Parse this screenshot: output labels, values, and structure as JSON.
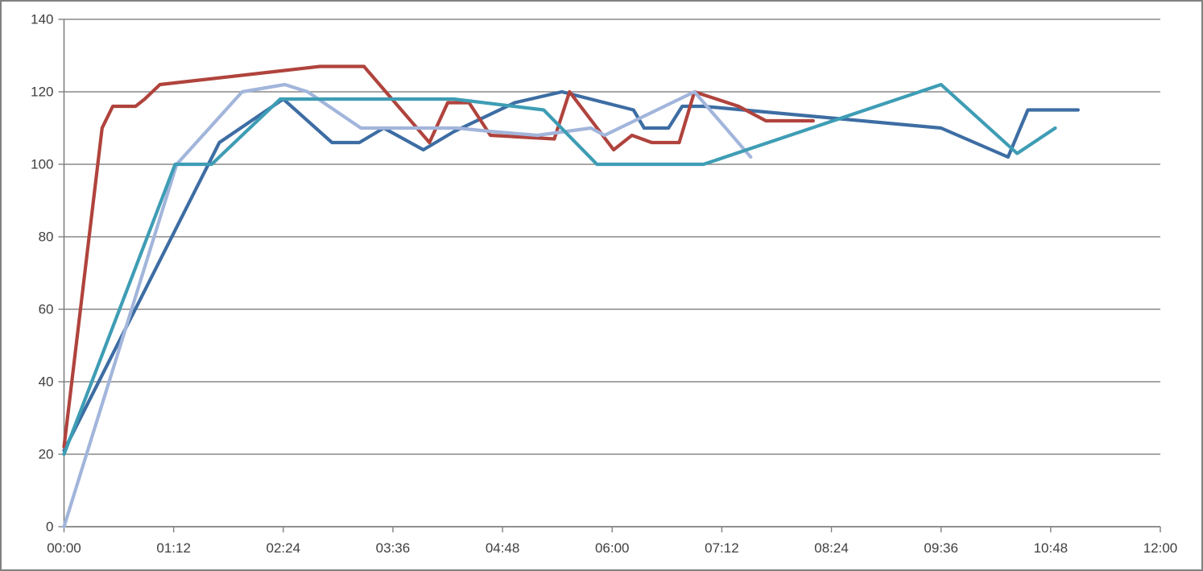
{
  "chart_data": {
    "type": "line",
    "title": "",
    "legend": "none",
    "grid": "horizontal",
    "background": "#FFFFFF",
    "frame_border_color": "#808080",
    "axis_color": "#808080",
    "gridline_color": "#888888",
    "label_color": "#3F3F3F",
    "x_axis": {
      "kind": "time",
      "tick_labels": [
        "00:00",
        "01:12",
        "02:24",
        "03:36",
        "04:48",
        "06:00",
        "07:12",
        "08:24",
        "09:36",
        "10:48",
        "12:00"
      ],
      "tick_minutes": [
        0,
        72,
        144,
        216,
        288,
        360,
        432,
        504,
        576,
        648,
        720
      ],
      "range_minutes": [
        0,
        720
      ]
    },
    "y_axis": {
      "tick_labels": [
        "0",
        "20",
        "40",
        "60",
        "80",
        "100",
        "120",
        "140"
      ],
      "ticks": [
        0,
        20,
        40,
        60,
        80,
        100,
        120,
        140
      ],
      "range": [
        0,
        140
      ]
    },
    "series": [
      {
        "name": "dark-blue",
        "color": "#3D6DA3",
        "points_time_value": [
          [
            "00:00",
            21
          ],
          [
            "01:42",
            106
          ],
          [
            "02:24",
            118
          ],
          [
            "02:56",
            106
          ],
          [
            "03:14",
            106
          ],
          [
            "03:30",
            110
          ],
          [
            "03:56",
            104
          ],
          [
            "04:16",
            109
          ],
          [
            "04:56",
            117
          ],
          [
            "05:27",
            120
          ],
          [
            "06:14",
            115
          ],
          [
            "06:21",
            110
          ],
          [
            "06:37",
            110
          ],
          [
            "06:46",
            116
          ],
          [
            "07:00",
            116
          ],
          [
            "09:36",
            110
          ],
          [
            "10:20",
            102
          ],
          [
            "10:33",
            115
          ],
          [
            "11:06",
            115
          ]
        ]
      },
      {
        "name": "dark-red",
        "color": "#B0433D",
        "points_time_value": [
          [
            "00:00",
            22
          ],
          [
            "00:25",
            110
          ],
          [
            "00:32",
            116
          ],
          [
            "00:47",
            116
          ],
          [
            "00:53",
            118
          ],
          [
            "01:03",
            122
          ],
          [
            "02:48",
            127
          ],
          [
            "03:17",
            127
          ],
          [
            "04:00",
            106
          ],
          [
            "04:12",
            117
          ],
          [
            "04:26",
            117
          ],
          [
            "04:40",
            108
          ],
          [
            "05:22",
            107
          ],
          [
            "05:32",
            120
          ],
          [
            "06:01",
            104
          ],
          [
            "06:13",
            108
          ],
          [
            "06:26",
            106
          ],
          [
            "06:44",
            106
          ],
          [
            "06:54",
            120
          ],
          [
            "07:23",
            116
          ],
          [
            "07:41",
            112
          ],
          [
            "08:12",
            112
          ]
        ]
      },
      {
        "name": "light-blue",
        "color": "#A2B5DB",
        "points_time_value": [
          [
            "00:00",
            0
          ],
          [
            "01:14",
            100
          ],
          [
            "01:57",
            120
          ],
          [
            "02:25",
            122
          ],
          [
            "02:40",
            120
          ],
          [
            "03:15",
            110
          ],
          [
            "04:18",
            110
          ],
          [
            "04:42",
            109
          ],
          [
            "05:11",
            108
          ],
          [
            "05:46",
            110
          ],
          [
            "05:55",
            108
          ],
          [
            "06:54",
            120
          ],
          [
            "07:31",
            102
          ]
        ]
      },
      {
        "name": "teal",
        "color": "#3E9DB5",
        "points_time_value": [
          [
            "00:00",
            20
          ],
          [
            "01:13",
            100
          ],
          [
            "01:37",
            100
          ],
          [
            "02:22",
            118
          ],
          [
            "04:16",
            118
          ],
          [
            "05:15",
            115
          ],
          [
            "05:50",
            100
          ],
          [
            "07:00",
            100
          ],
          [
            "09:36",
            122
          ],
          [
            "10:26",
            103
          ],
          [
            "10:51",
            110
          ]
        ]
      }
    ]
  }
}
